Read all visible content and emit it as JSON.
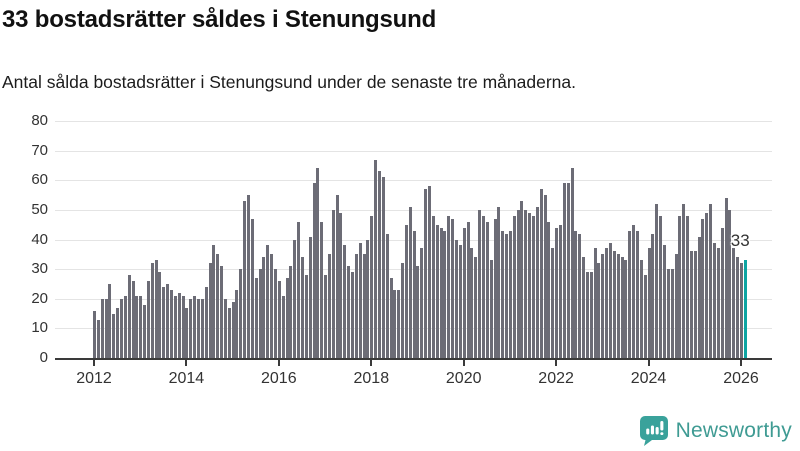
{
  "header": {
    "title": "33 bostadsrätter såldes i Stenungsund",
    "subtitle": "Antal sålda bostadsrätter i Stenungsund under de senaste tre månaderna."
  },
  "footer": {
    "logo_text": "Newsworthy"
  },
  "colors": {
    "bar_gray": "#6c6c76",
    "bar_highlight_teal": "#0da5a3",
    "gridline": "#e4e4e4",
    "axis_text": "#333333",
    "logo_teal": "#3f9b93"
  },
  "chart_data": {
    "type": "bar",
    "title": "33 bostadsrätter såldes i Stenungsund",
    "subtitle": "Antal sålda bostadsrätter i Stenungsund under de senaste tre månaderna.",
    "ylabel": "",
    "xlabel": "",
    "ylim": [
      0,
      80
    ],
    "yticks": [
      0,
      10,
      20,
      30,
      40,
      50,
      60,
      70,
      80
    ],
    "xticks": [
      2012,
      2014,
      2016,
      2018,
      2020,
      2022,
      2024,
      2026
    ],
    "grid": "horizontal",
    "legend": "none",
    "x_start": {
      "year": 2012,
      "month": 1
    },
    "x_end": {
      "year": 2026,
      "month": 2
    },
    "values_by_year": {
      "2012": [
        16,
        13,
        20,
        20,
        25,
        15,
        17,
        20,
        21,
        28,
        26,
        21
      ],
      "2013": [
        21,
        18,
        26,
        32,
        33,
        29,
        24,
        25,
        23,
        21,
        22,
        21
      ],
      "2014": [
        17,
        20,
        21,
        20,
        20,
        24,
        32,
        38,
        35,
        31,
        20,
        17
      ],
      "2015": [
        19,
        23,
        30,
        53,
        55,
        47,
        27,
        30,
        34,
        38,
        35,
        30
      ],
      "2016": [
        26,
        21,
        27,
        31,
        40,
        46,
        34,
        28,
        41,
        59,
        64,
        46
      ],
      "2017": [
        28,
        35,
        50,
        55,
        49,
        38,
        31,
        29,
        35,
        39,
        35,
        40
      ],
      "2018": [
        48,
        67,
        63,
        61,
        42,
        27,
        23,
        23,
        32,
        45,
        51,
        43
      ],
      "2019": [
        31,
        37,
        57,
        58,
        48,
        45,
        44,
        43,
        48,
        47,
        40,
        38
      ],
      "2020": [
        44,
        46,
        37,
        34,
        50,
        48,
        46,
        33,
        47,
        51,
        43,
        42
      ],
      "2021": [
        43,
        48,
        50,
        53,
        50,
        49,
        48,
        51,
        57,
        55,
        46,
        37
      ],
      "2022": [
        44,
        45,
        59,
        59,
        64,
        43,
        42,
        34,
        29,
        29,
        37,
        32
      ],
      "2023": [
        35,
        37,
        39,
        36,
        35,
        34,
        33,
        43,
        45,
        43,
        33,
        28
      ],
      "2024": [
        37,
        42,
        52,
        48,
        38,
        30,
        30,
        35,
        48,
        52,
        48,
        36
      ],
      "2025": [
        36,
        41,
        47,
        49,
        52,
        39,
        37,
        44,
        54,
        50,
        37,
        34
      ],
      "2026": [
        32,
        33
      ]
    },
    "highlight": {
      "position": "last",
      "value": 33,
      "label": "33",
      "color": "#0da5a3"
    },
    "bar_color": "#6c6c76"
  }
}
